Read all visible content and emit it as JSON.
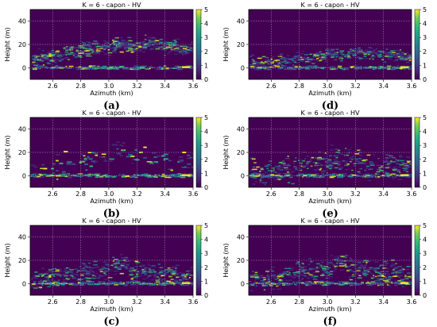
{
  "panels": [
    {
      "caption": "(a)",
      "pattern": "a"
    },
    {
      "caption": "(d)",
      "pattern": "d"
    },
    {
      "caption": "(b)",
      "pattern": "b"
    },
    {
      "caption": "(e)",
      "pattern": "e"
    },
    {
      "caption": "(c)",
      "pattern": "c"
    },
    {
      "caption": "(f)",
      "pattern": "f"
    }
  ],
  "chart_data": {
    "type": "heatmap",
    "title": "K = 6 - capon - HV",
    "xlabel": "Azimuth (km)",
    "ylabel": "Height (m)",
    "xlim": [
      2.44,
      3.6
    ],
    "ylim": [
      -10,
      50
    ],
    "x_ticks": [
      "2.6",
      "2.8",
      "3.0",
      "3.2",
      "3.4",
      "3.6"
    ],
    "y_ticks": [
      "0",
      "20",
      "40"
    ],
    "colorbar": {
      "range": [
        0,
        5
      ],
      "ticks": [
        "0",
        "1",
        "2",
        "3",
        "4",
        "5"
      ],
      "colormap": "viridis"
    },
    "grid": true,
    "background": "#440154"
  }
}
